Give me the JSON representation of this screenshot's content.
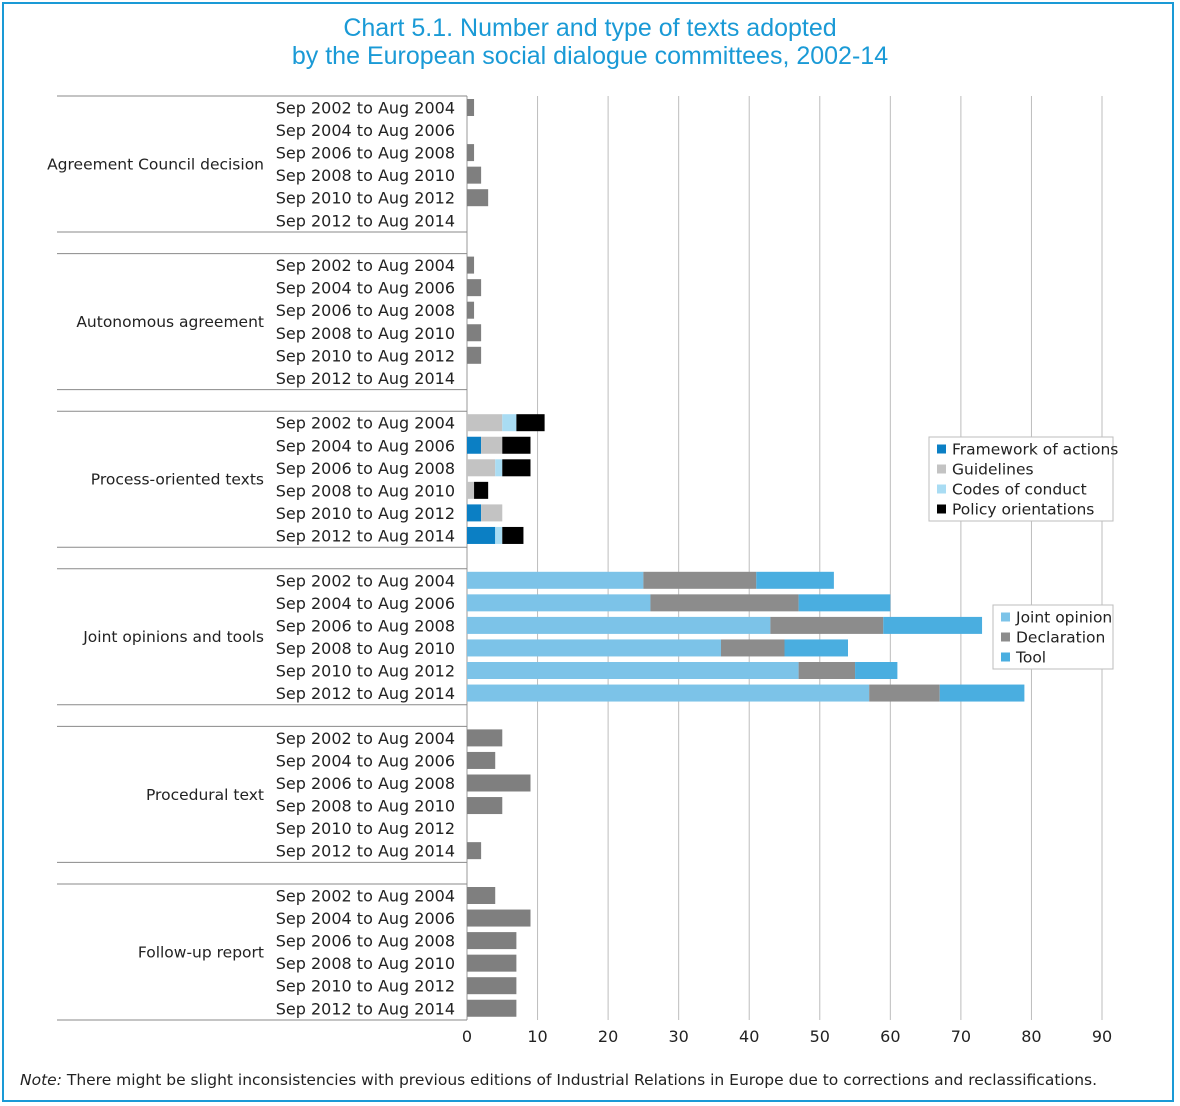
{
  "title_line1": "Chart 5.1. Number and type of texts adopted",
  "title_line2": "by the European social dialogue committees, 2002-14",
  "note_label": "Note:",
  "note_text": "There might be slight inconsistencies with previous editions of Industrial Relations in Europe due to corrections and reclassifications.",
  "colors": {
    "frame": "#1a9ad6",
    "title": "#1a9ad6",
    "single": "#7f7f7f",
    "Framework of actions": "#0b7fc4",
    "Guidelines": "#c3c3c3",
    "Codes of conduct": "#a9dcf3",
    "Policy orientations": "#000000",
    "Joint opinion": "#7cc3e8",
    "Declaration": "#8c8c8c",
    "Tool": "#4aaee0"
  },
  "chart_data": {
    "type": "bar",
    "orientation": "horizontal",
    "stacked": true,
    "xlim": [
      0,
      90
    ],
    "xticks": [
      0,
      10,
      20,
      30,
      40,
      50,
      60,
      70,
      80,
      90
    ],
    "grid": "vertical",
    "periods": [
      "Sep 2002 to Aug 2004",
      "Sep 2004 to Aug 2006",
      "Sep 2006 to Aug 2008",
      "Sep 2008 to Aug 2010",
      "Sep 2010 to Aug 2012",
      "Sep 2012 to Aug 2014"
    ],
    "legends": [
      {
        "placement": "right-middle",
        "entries": [
          "Framework of actions",
          "Guidelines",
          "Codes of conduct",
          "Policy orientations"
        ]
      },
      {
        "placement": "right-lower",
        "entries": [
          "Joint opinion",
          "Declaration",
          "Tool"
        ]
      }
    ],
    "groups": [
      {
        "name": "Agreement Council decision",
        "series": [
          {
            "name": "",
            "values": [
              1,
              0,
              1,
              2,
              3,
              0
            ]
          }
        ]
      },
      {
        "name": "Autonomous agreement",
        "series": [
          {
            "name": "",
            "values": [
              1,
              2,
              1,
              2,
              2,
              0
            ]
          }
        ]
      },
      {
        "name": "Process-oriented texts",
        "series": [
          {
            "name": "Framework of actions",
            "values": [
              0,
              2,
              0,
              0,
              2,
              4
            ]
          },
          {
            "name": "Guidelines",
            "values": [
              5,
              3,
              4,
              1,
              3,
              0
            ]
          },
          {
            "name": "Codes of conduct",
            "values": [
              2,
              0,
              1,
              0,
              0,
              1
            ]
          },
          {
            "name": "Policy orientations",
            "values": [
              4,
              4,
              4,
              2,
              0,
              3
            ]
          }
        ]
      },
      {
        "name": "Joint opinions and tools",
        "series": [
          {
            "name": "Joint opinion",
            "values": [
              25,
              26,
              43,
              36,
              47,
              57
            ]
          },
          {
            "name": "Declaration",
            "values": [
              16,
              21,
              16,
              9,
              8,
              10
            ]
          },
          {
            "name": "Tool",
            "values": [
              11,
              13,
              14,
              9,
              6,
              12
            ]
          }
        ]
      },
      {
        "name": "Procedural text",
        "series": [
          {
            "name": "",
            "values": [
              5,
              4,
              9,
              5,
              0,
              2
            ]
          }
        ]
      },
      {
        "name": "Follow-up report",
        "series": [
          {
            "name": "",
            "values": [
              4,
              9,
              7,
              7,
              7,
              7
            ]
          }
        ]
      }
    ]
  }
}
